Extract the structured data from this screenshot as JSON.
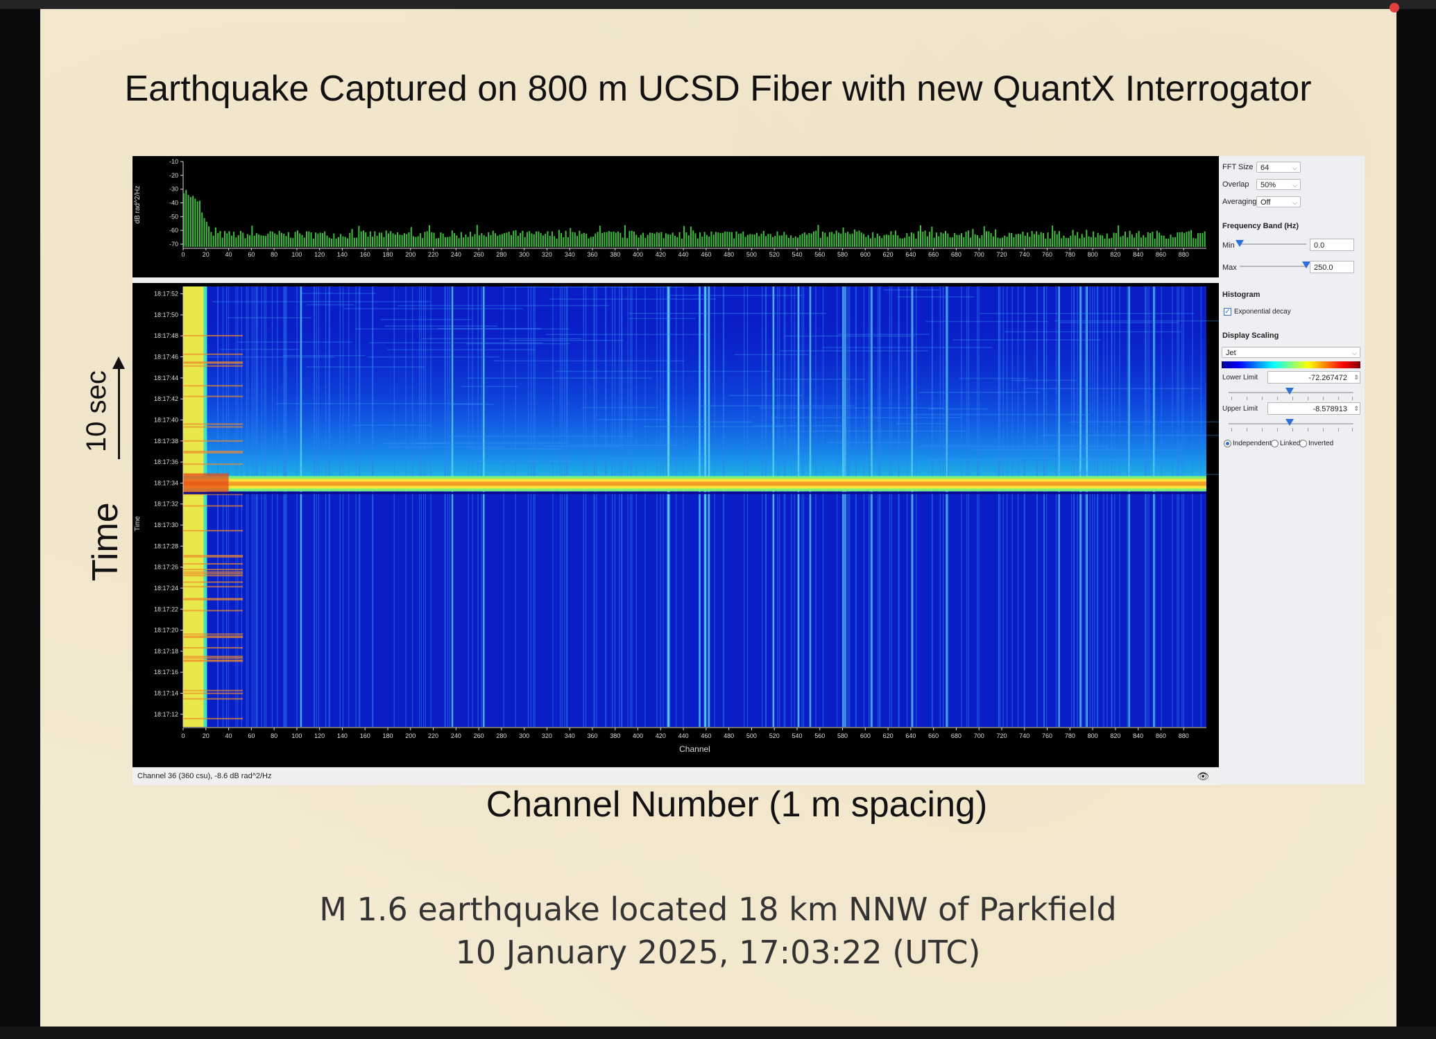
{
  "slide": {
    "title": "Earthquake Captured on 800 m UCSD Fiber with new QuantX Interrogator",
    "y_annotation": "Time",
    "scale_annotation": "10 sec",
    "x_annotation": "Channel Number (1 m spacing)",
    "caption_line1": "M 1.6 earthquake located 18 km NNW of Parkfield",
    "caption_line2": "10 January 2025, 17:03:22 (UTC)"
  },
  "app": {
    "status_text": "Channel 36 (360 csu), -8.6 dB rad^2/Hz",
    "spectrum": {
      "ylabel": "dB rad^2/Hz",
      "y_ticks": [
        "-10",
        "-20",
        "-30",
        "-40",
        "-50",
        "-60",
        "-70"
      ]
    },
    "waterfall": {
      "ylabel": "Time",
      "xlabel": "Channel",
      "time_ticks": [
        "18:17:52",
        "18:17:50",
        "18:17:48",
        "18:17:46",
        "18:17:44",
        "18:17:42",
        "18:17:40",
        "18:17:38",
        "18:17:36",
        "18:17:34",
        "18:17:32",
        "18:17:30",
        "18:17:28",
        "18:17:26",
        "18:17:24",
        "18:17:22",
        "18:17:20",
        "18:17:18",
        "18:17:16",
        "18:17:14",
        "18:17:12"
      ],
      "event_time": "18:17:34"
    },
    "channel_ticks": [
      "0",
      "20",
      "40",
      "60",
      "80",
      "100",
      "120",
      "140",
      "160",
      "180",
      "200",
      "220",
      "240",
      "260",
      "280",
      "300",
      "320",
      "340",
      "360",
      "380",
      "400",
      "420",
      "440",
      "460",
      "480",
      "500",
      "520",
      "540",
      "560",
      "580",
      "600",
      "620",
      "640",
      "660",
      "680",
      "700",
      "720",
      "740",
      "760",
      "780",
      "800",
      "820",
      "840",
      "860",
      "880"
    ],
    "panel": {
      "fft_size_label": "FFT Size",
      "fft_size_value": "64",
      "overlap_label": "Overlap",
      "overlap_value": "50%",
      "averaging_label": "Averaging",
      "averaging_value": "Off",
      "freq_band_heading": "Frequency Band (Hz)",
      "min_label": "Min",
      "min_value": "0.0",
      "max_label": "Max",
      "max_value": "250.0",
      "min_slider_fraction": 0.0,
      "max_slider_fraction": 1.0,
      "histogram_heading": "Histogram",
      "exp_decay_label": "Exponential decay",
      "exp_decay_checked": true,
      "display_scaling_heading": "Display Scaling",
      "colormap_value": "Jet",
      "lower_limit_label": "Lower Limit",
      "lower_limit_value": "-72.267472",
      "upper_limit_label": "Upper Limit",
      "upper_limit_value": "-8.578913",
      "radio_independent": "Independent",
      "radio_linked": "Linked",
      "radio_inverted": "Inverted",
      "radio_selected": "Independent"
    }
  }
}
